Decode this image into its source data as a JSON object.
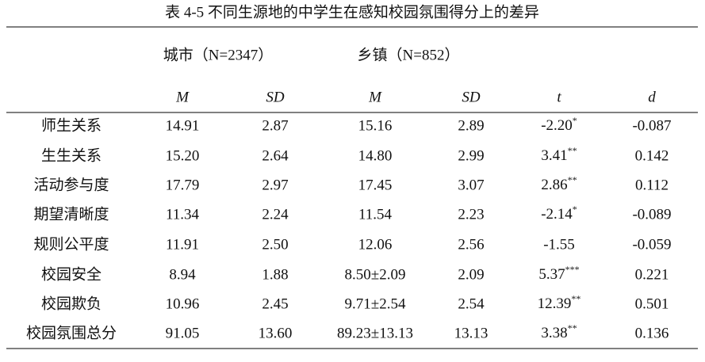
{
  "title": "表 4-5 不同生源地的中学生在感知校园氛围得分上的差异",
  "table": {
    "groups": [
      "城市（N=2347）",
      "乡镇（N=852）"
    ],
    "columns": [
      "M",
      "SD",
      "M",
      "SD",
      "t",
      "d"
    ],
    "rows": [
      {
        "label": "师生关系",
        "cells": [
          "14.91",
          "2.87",
          "15.16",
          "2.89",
          "-2.20",
          "-0.087"
        ],
        "sig": "*"
      },
      {
        "label": "生生关系",
        "cells": [
          "15.20",
          "2.64",
          "14.80",
          "2.99",
          "3.41",
          "0.142"
        ],
        "sig": "**"
      },
      {
        "label": "活动参与度",
        "cells": [
          "17.79",
          "2.97",
          "17.45",
          "3.07",
          "2.86",
          "0.112"
        ],
        "sig": "**"
      },
      {
        "label": "期望清晰度",
        "cells": [
          "11.34",
          "2.24",
          "11.54",
          "2.23",
          "-2.14",
          "-0.089"
        ],
        "sig": "*"
      },
      {
        "label": "规则公平度",
        "cells": [
          "11.91",
          "2.50",
          "12.06",
          "2.56",
          "-1.55",
          "-0.059"
        ]
      },
      {
        "label": "校园安全",
        "cells": [
          "8.94",
          "1.88",
          "8.50±2.09",
          "2.09",
          "5.37",
          "0.221"
        ],
        "sig": "***"
      },
      {
        "label": "校园欺负",
        "cells": [
          "10.96",
          "2.45",
          "9.71±2.54",
          "2.54",
          "12.39",
          "0.501"
        ],
        "sig": "**"
      },
      {
        "label": "校园氛围总分",
        "cells": [
          "91.05",
          "13.60",
          "89.23±13.13",
          "13.13",
          "3.38",
          "0.136"
        ],
        "sig": "**"
      }
    ]
  }
}
